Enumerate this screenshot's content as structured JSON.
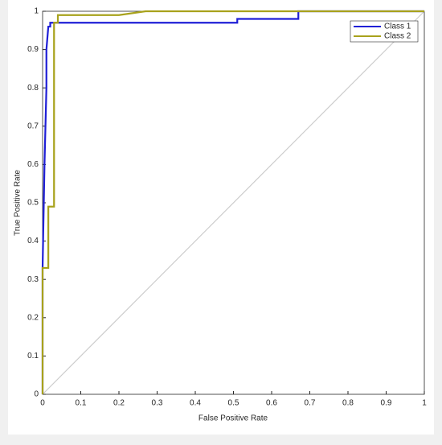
{
  "chart_data": {
    "type": "line",
    "xlabel": "False Positive Rate",
    "ylabel": "True Positive Rate",
    "xlim": [
      0,
      1
    ],
    "ylim": [
      0,
      1
    ],
    "xticks": [
      0,
      0.1,
      0.2,
      0.3,
      0.4,
      0.5,
      0.6,
      0.7,
      0.8,
      0.9,
      1
    ],
    "yticks": [
      0,
      0.1,
      0.2,
      0.3,
      0.4,
      0.5,
      0.6,
      0.7,
      0.8,
      0.9,
      1
    ],
    "legend": "top-right",
    "series": [
      {
        "name": "Class 1",
        "color": "#1f1fd6",
        "x": [
          0,
          0,
          0.005,
          0.01,
          0.01,
          0.015,
          0.02,
          0.02,
          0.51,
          0.51,
          0.67,
          0.67,
          1
        ],
        "values": [
          0,
          0.33,
          0.6,
          0.8,
          0.9,
          0.96,
          0.96,
          0.97,
          0.97,
          0.98,
          0.98,
          1,
          1
        ]
      },
      {
        "name": "Class 2",
        "color": "#a8a21c",
        "x": [
          0,
          0,
          0.015,
          0.015,
          0.03,
          0.03,
          0.04,
          0.04,
          0.2,
          0.27,
          1
        ],
        "values": [
          0,
          0.33,
          0.33,
          0.49,
          0.49,
          0.97,
          0.97,
          0.99,
          0.99,
          1,
          1
        ]
      }
    ]
  }
}
